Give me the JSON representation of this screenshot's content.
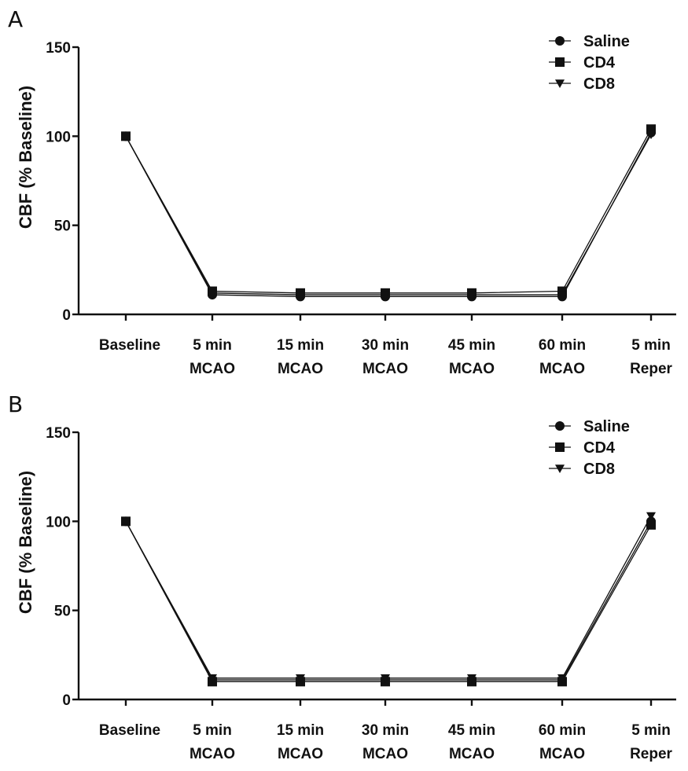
{
  "chart_data": [
    {
      "panel_label": "A",
      "type": "line",
      "ylabel": "CBF (% Baseline)",
      "ylim": [
        0,
        150
      ],
      "yticks": [
        "0",
        "50",
        "100",
        "150"
      ],
      "categories": [
        [
          "Baseline"
        ],
        [
          "5 min",
          "MCAO"
        ],
        [
          "15 min",
          "MCAO"
        ],
        [
          "30 min",
          "MCAO"
        ],
        [
          "45 min",
          "MCAO"
        ],
        [
          "60 min",
          "MCAO"
        ],
        [
          "5 min",
          "Reper"
        ]
      ],
      "legend": {
        "placement": "top-right"
      },
      "series": [
        {
          "name": "Saline",
          "marker": "circle",
          "values": [
            100,
            11,
            10,
            10,
            10,
            10,
            102
          ]
        },
        {
          "name": "CD4",
          "marker": "square",
          "values": [
            100,
            13,
            12,
            12,
            12,
            13,
            104
          ]
        },
        {
          "name": "CD8",
          "marker": "triangle-down",
          "values": [
            100,
            12,
            11,
            11,
            11,
            11,
            101
          ]
        }
      ]
    },
    {
      "panel_label": "B",
      "type": "line",
      "ylabel": "CBF (% Baseline)",
      "ylim": [
        0,
        150
      ],
      "yticks": [
        "0",
        "50",
        "100",
        "150"
      ],
      "categories": [
        [
          "Baseline"
        ],
        [
          "5 min",
          "MCAO"
        ],
        [
          "15 min",
          "MCAO"
        ],
        [
          "30 min",
          "MCAO"
        ],
        [
          "45 min",
          "MCAO"
        ],
        [
          "60 min",
          "MCAO"
        ],
        [
          "5 min",
          "Reper"
        ]
      ],
      "legend": {
        "placement": "top-right"
      },
      "series": [
        {
          "name": "Saline",
          "marker": "circle",
          "values": [
            100,
            11,
            11,
            11,
            11,
            11,
            100
          ]
        },
        {
          "name": "CD4",
          "marker": "square",
          "values": [
            100,
            10,
            10,
            10,
            10,
            10,
            98
          ]
        },
        {
          "name": "CD8",
          "marker": "triangle-down",
          "values": [
            100,
            12,
            12,
            12,
            12,
            12,
            103
          ]
        }
      ]
    }
  ]
}
